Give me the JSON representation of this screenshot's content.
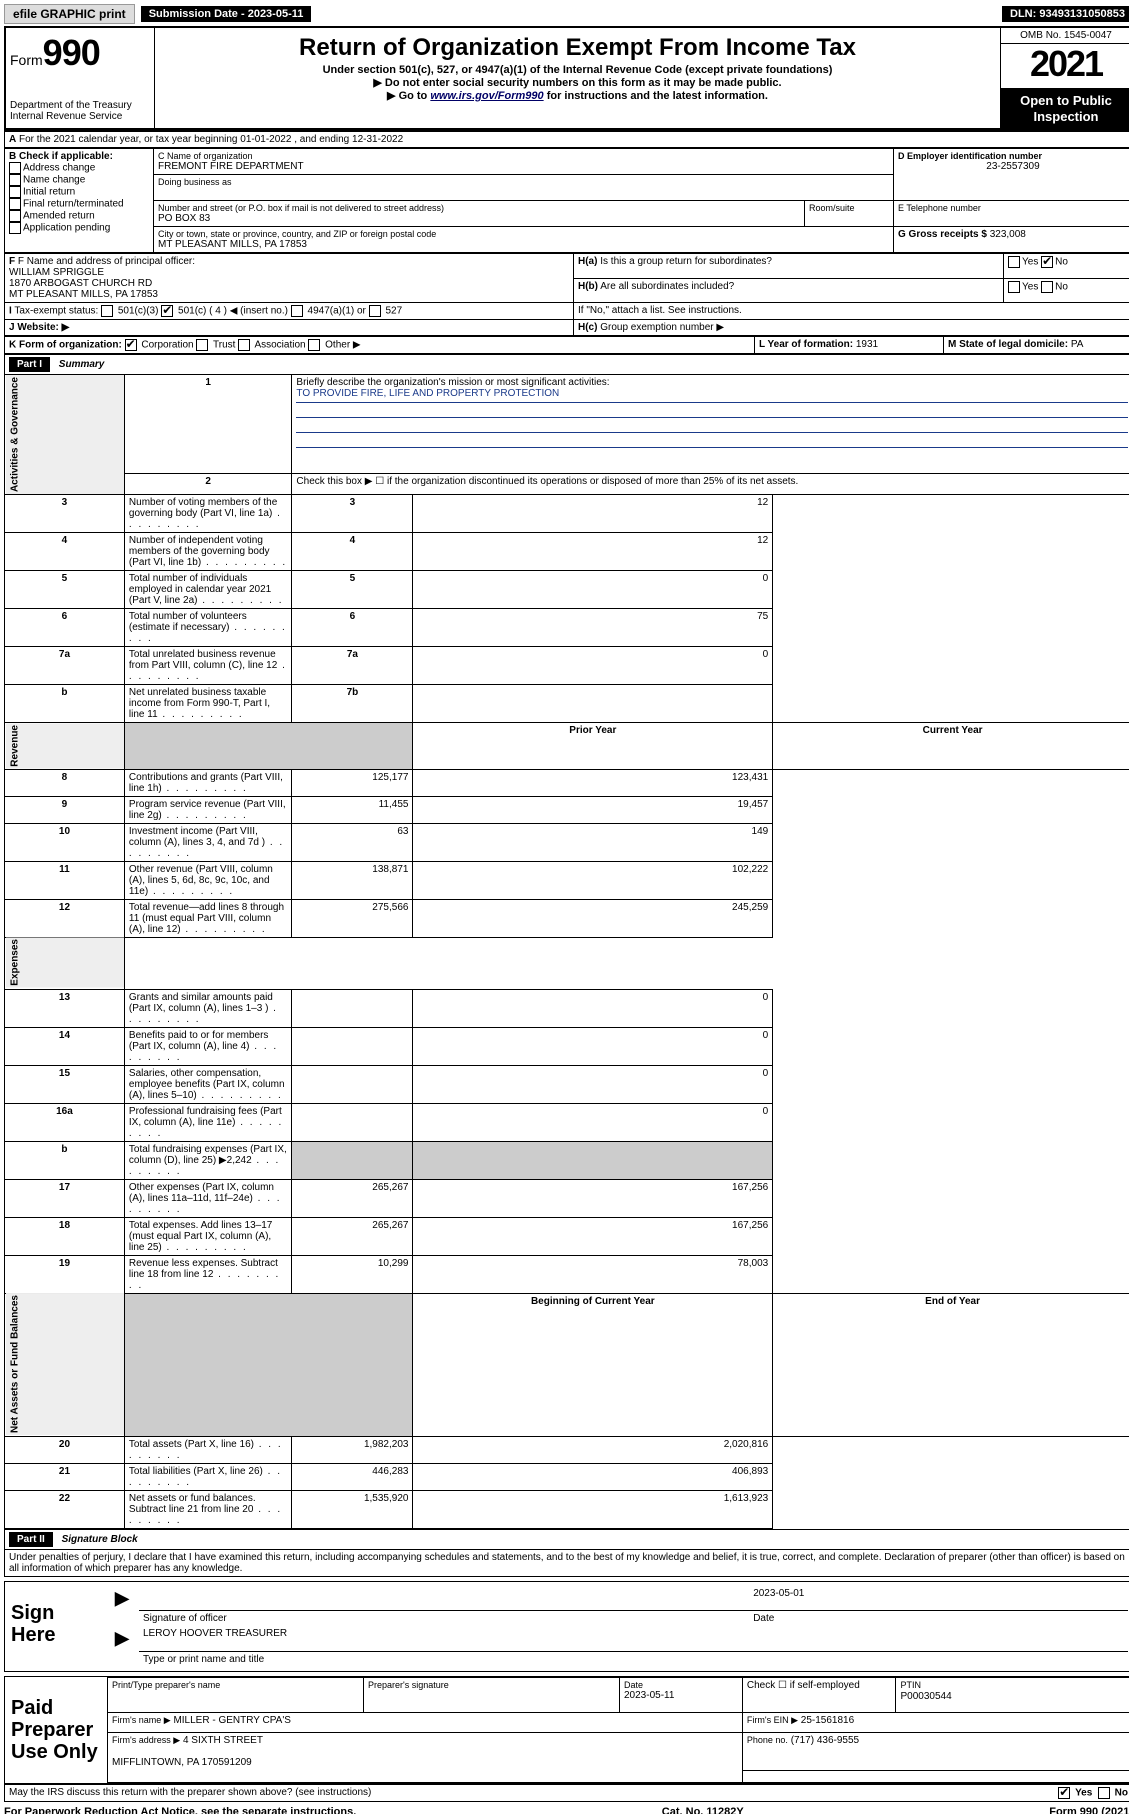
{
  "topbar": {
    "efile": "efile GRAPHIC print",
    "sub_label": "Submission Date - 2023-05-11",
    "dln": "DLN: 93493131050853"
  },
  "header": {
    "form_label": "Form",
    "form_no": "990",
    "dept": "Department of the Treasury\nInternal Revenue Service",
    "title": "Return of Organization Exempt From Income Tax",
    "sub1": "Under section 501(c), 527, or 4947(a)(1) of the Internal Revenue Code (except private foundations)",
    "sub2": "▶ Do not enter social security numbers on this form as it may be made public.",
    "sub3_pre": "▶ Go to ",
    "sub3_link": "www.irs.gov/Form990",
    "sub3_post": " for instructions and the latest information.",
    "omb": "OMB No. 1545-0047",
    "year": "2021",
    "open": "Open to Public Inspection"
  },
  "A": {
    "line": "For the 2021 calendar year, or tax year beginning 01-01-2022  , and ending 12-31-2022"
  },
  "B": {
    "label": "B Check if applicable:",
    "opts": [
      "Address change",
      "Name change",
      "Initial return",
      "Final return/terminated",
      "Amended return",
      "Application pending"
    ]
  },
  "C": {
    "name_label": "C Name of organization",
    "name": "FREMONT FIRE DEPARTMENT",
    "dba_label": "Doing business as",
    "addr_label": "Number and street (or P.O. box if mail is not delivered to street address)",
    "room_label": "Room/suite",
    "addr": "PO BOX 83",
    "city_label": "City or town, state or province, country, and ZIP or foreign postal code",
    "city": "MT PLEASANT MILLS, PA  17853"
  },
  "D": {
    "label": "D Employer identification number",
    "val": "23-2557309"
  },
  "E": {
    "label": "E Telephone number",
    "val": ""
  },
  "G": {
    "label": "G Gross receipts $",
    "val": "323,008"
  },
  "F": {
    "label": "F Name and address of principal officer:",
    "name": "WILLIAM SPRIGGLE",
    "addr1": "1870 ARBOGAST CHURCH RD",
    "addr2": "MT PLEASANT MILLS, PA  17853"
  },
  "H": {
    "a": "Is this a group return for subordinates?",
    "b": "Are all subordinates included?",
    "b2": "If \"No,\" attach a list. See instructions.",
    "c": "Group exemption number ▶",
    "yes": "Yes",
    "no": "No"
  },
  "I": {
    "label": "Tax-exempt status:",
    "opts": [
      "501(c)(3)",
      "501(c) ( 4 ) ◀ (insert no.)",
      "4947(a)(1) or",
      "527"
    ]
  },
  "J": {
    "label": "Website: ▶"
  },
  "K": {
    "label": "K Form of organization:",
    "opts": [
      "Corporation",
      "Trust",
      "Association",
      "Other ▶"
    ]
  },
  "L": {
    "label": "L Year of formation:",
    "val": "1931"
  },
  "M": {
    "label": "M State of legal domicile:",
    "val": "PA"
  },
  "part1": {
    "hdr": "Part I",
    "title": "Summary",
    "l1": "Briefly describe the organization's mission or most significant activities:",
    "mission": "TO PROVIDE FIRE, LIFE AND PROPERTY PROTECTION",
    "l2": "Check this box ▶ ☐  if the organization discontinued its operations or disposed of more than 25% of its net assets.",
    "rows_gov": [
      {
        "n": "3",
        "t": "Number of voting members of the governing body (Part VI, line 1a)",
        "box": "3",
        "v": "12"
      },
      {
        "n": "4",
        "t": "Number of independent voting members of the governing body (Part VI, line 1b)",
        "box": "4",
        "v": "12"
      },
      {
        "n": "5",
        "t": "Total number of individuals employed in calendar year 2021 (Part V, line 2a)",
        "box": "5",
        "v": "0"
      },
      {
        "n": "6",
        "t": "Total number of volunteers (estimate if necessary)",
        "box": "6",
        "v": "75"
      },
      {
        "n": "7a",
        "t": "Total unrelated business revenue from Part VIII, column (C), line 12",
        "box": "7a",
        "v": "0"
      },
      {
        "n": "b",
        "t": "Net unrelated business taxable income from Form 990-T, Part I, line 11",
        "box": "7b",
        "v": ""
      }
    ],
    "col_prior": "Prior Year",
    "col_curr": "Current Year",
    "rows_rev": [
      {
        "n": "8",
        "t": "Contributions and grants (Part VIII, line 1h)",
        "p": "125,177",
        "c": "123,431"
      },
      {
        "n": "9",
        "t": "Program service revenue (Part VIII, line 2g)",
        "p": "11,455",
        "c": "19,457"
      },
      {
        "n": "10",
        "t": "Investment income (Part VIII, column (A), lines 3, 4, and 7d )",
        "p": "63",
        "c": "149"
      },
      {
        "n": "11",
        "t": "Other revenue (Part VIII, column (A), lines 5, 6d, 8c, 9c, 10c, and 11e)",
        "p": "138,871",
        "c": "102,222"
      },
      {
        "n": "12",
        "t": "Total revenue—add lines 8 through 11 (must equal Part VIII, column (A), line 12)",
        "p": "275,566",
        "c": "245,259"
      }
    ],
    "rows_exp": [
      {
        "n": "13",
        "t": "Grants and similar amounts paid (Part IX, column (A), lines 1–3 )",
        "p": "",
        "c": "0"
      },
      {
        "n": "14",
        "t": "Benefits paid to or for members (Part IX, column (A), line 4)",
        "p": "",
        "c": "0"
      },
      {
        "n": "15",
        "t": "Salaries, other compensation, employee benefits (Part IX, column (A), lines 5–10)",
        "p": "",
        "c": "0"
      },
      {
        "n": "16a",
        "t": "Professional fundraising fees (Part IX, column (A), line 11e)",
        "p": "",
        "c": "0"
      },
      {
        "n": "b",
        "t": "Total fundraising expenses (Part IX, column (D), line 25) ▶2,242",
        "p": "shade",
        "c": "shade"
      },
      {
        "n": "17",
        "t": "Other expenses (Part IX, column (A), lines 11a–11d, 11f–24e)",
        "p": "265,267",
        "c": "167,256"
      },
      {
        "n": "18",
        "t": "Total expenses. Add lines 13–17 (must equal Part IX, column (A), line 25)",
        "p": "265,267",
        "c": "167,256"
      },
      {
        "n": "19",
        "t": "Revenue less expenses. Subtract line 18 from line 12",
        "p": "10,299",
        "c": "78,003"
      }
    ],
    "col_beg": "Beginning of Current Year",
    "col_end": "End of Year",
    "rows_net": [
      {
        "n": "20",
        "t": "Total assets (Part X, line 16)",
        "p": "1,982,203",
        "c": "2,020,816"
      },
      {
        "n": "21",
        "t": "Total liabilities (Part X, line 26)",
        "p": "446,283",
        "c": "406,893"
      },
      {
        "n": "22",
        "t": "Net assets or fund balances. Subtract line 21 from line 20",
        "p": "1,535,920",
        "c": "1,613,923"
      }
    ],
    "side_gov": "Activities & Governance",
    "side_rev": "Revenue",
    "side_exp": "Expenses",
    "side_net": "Net Assets or Fund Balances"
  },
  "part2": {
    "hdr": "Part II",
    "title": "Signature Block",
    "penalties": "Under penalties of perjury, I declare that I have examined this return, including accompanying schedules and statements, and to the best of my knowledge and belief, it is true, correct, and complete. Declaration of preparer (other than officer) is based on all information of which preparer has any knowledge.",
    "sign_here": "Sign Here",
    "sig_officer": "Signature of officer",
    "sig_date": "2023-05-01",
    "date_lbl": "Date",
    "officer": "LEROY HOOVER  TREASURER",
    "officer_lbl": "Type or print name and title",
    "paid": "Paid Preparer Use Only",
    "pt_name_lbl": "Print/Type preparer's name",
    "pt_sig_lbl": "Preparer's signature",
    "pt_date_lbl": "Date",
    "pt_date": "2023-05-11",
    "pt_check": "Check ☐ if self-employed",
    "ptin_lbl": "PTIN",
    "ptin": "P00030544",
    "firm_name_lbl": "Firm's name    ▶",
    "firm_name": "MILLER - GENTRY CPA'S",
    "firm_ein_lbl": "Firm's EIN ▶",
    "firm_ein": "25-1561816",
    "firm_addr_lbl": "Firm's address ▶",
    "firm_addr1": "4 SIXTH STREET",
    "firm_addr2": "MIFFLINTOWN, PA  170591209",
    "phone_lbl": "Phone no.",
    "phone": "(717) 436-9555",
    "discuss": "May the IRS discuss this return with the preparer shown above? (see instructions)"
  },
  "footer": {
    "left": "For Paperwork Reduction Act Notice, see the separate instructions.",
    "mid": "Cat. No. 11282Y",
    "right": "Form 990 (2021)"
  }
}
